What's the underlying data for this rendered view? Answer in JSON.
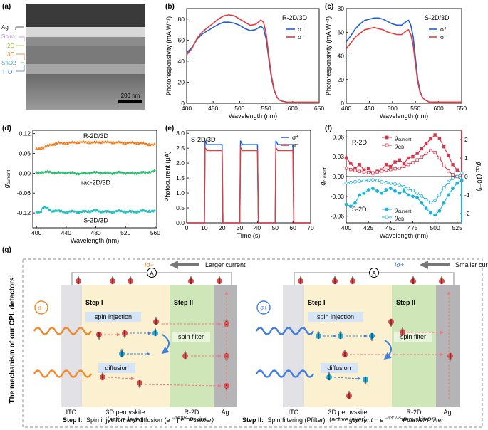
{
  "panels": {
    "a": {
      "label": "(a)",
      "layers": [
        "Ag",
        "Spiro",
        "2D",
        "3D",
        "SnO2",
        "ITO"
      ],
      "scale_bar": "200 nm",
      "colors": {
        "Ag": "#222222",
        "Spiro": "#b088d0",
        "2D": "#9acd32",
        "3D": "#e07020",
        "SnO2": "#4aa0a0",
        "ITO": "#3a7bd5"
      }
    },
    "b": {
      "label": "(b)",
      "title": "R-2D/3D"
    },
    "c": {
      "label": "(c)",
      "title": "S-2D/3D"
    },
    "d": {
      "label": "(d)"
    },
    "e": {
      "label": "(e)",
      "title": "S-2D/3D"
    },
    "f": {
      "label": "(f)",
      "label_top": "R-2D",
      "label_bottom": "S-2D"
    },
    "g": {
      "label": "(g)",
      "side_title": "The mechanism of our CPL detectors",
      "left": {
        "current_symbol": "Iσ−",
        "current_text": "Larger current",
        "light": "σ−"
      },
      "right": {
        "current_symbol": "Iσ+",
        "current_text": "Smaller current",
        "light": "σ+"
      },
      "ammeter": "A",
      "step1": "Step I",
      "step2": "Step II",
      "spin_injection": "spin injection",
      "diffusion": "diffusion",
      "spin_filter": "spin filter",
      "ito": "ITO",
      "perovskite3d_line1": "3D perovskite",
      "perovskite3d_line2": "(active layer)",
      "r2d_line1": "R-2D",
      "r2d_line2": "perovskite",
      "ag": "Ag",
      "caption_step1_bold": "Step I:",
      "caption_step1_text": "Spin injection and diffusion (e",
      "caption_step1_exp": "−d3D/λs",
      "caption_step1_tail": "Pcarrier)",
      "caption_step2_bold": "Step II:",
      "caption_step2_text": "Spin filtering (Pfilter)",
      "caption_eq": "gcurrent = e",
      "caption_eq_exp": "−d3D/λs",
      "caption_eq_tail": "Pcarrier Pfilter"
    }
  },
  "chart_data": [
    {
      "id": "b",
      "type": "line",
      "title": "R-2D/3D",
      "xlabel": "Wavelength (nm)",
      "ylabel": "Photoresponsivity (mA W⁻¹)",
      "xlim": [
        400,
        650
      ],
      "ylim": [
        0,
        90
      ],
      "xticks": [
        400,
        450,
        500,
        550,
        600,
        650
      ],
      "yticks": [
        0,
        20,
        40,
        60,
        80
      ],
      "legend": "top-right",
      "series": [
        {
          "name": "σ⁺",
          "color": "#1f5fd6",
          "x": [
            400,
            410,
            420,
            430,
            440,
            450,
            460,
            470,
            480,
            490,
            500,
            510,
            520,
            530,
            540,
            545,
            550,
            555,
            560,
            565,
            570,
            575,
            580,
            590,
            600,
            625,
            650
          ],
          "y": [
            48,
            53,
            61,
            66,
            69,
            72,
            75,
            77,
            77,
            76,
            74,
            71,
            69,
            70,
            73,
            71,
            61,
            42,
            24,
            12,
            6,
            3,
            2,
            1,
            1,
            1,
            1
          ]
        },
        {
          "name": "σ⁻",
          "color": "#e23b3b",
          "x": [
            400,
            410,
            420,
            430,
            440,
            450,
            460,
            470,
            480,
            490,
            500,
            510,
            520,
            530,
            540,
            545,
            550,
            555,
            560,
            565,
            570,
            575,
            580,
            590,
            600,
            625,
            650
          ],
          "y": [
            46,
            52,
            62,
            68,
            72,
            76,
            80,
            83,
            84,
            83,
            80,
            77,
            74,
            75,
            79,
            77,
            66,
            45,
            26,
            13,
            6,
            3,
            2,
            1,
            1,
            1,
            1
          ]
        }
      ]
    },
    {
      "id": "c",
      "type": "line",
      "title": "S-2D/3D",
      "xlabel": "Wavelength (nm)",
      "ylabel": "Photoresponsivity (mA W⁻¹)",
      "xlim": [
        400,
        650
      ],
      "ylim": [
        0,
        80
      ],
      "xticks": [
        400,
        450,
        500,
        550,
        600,
        650
      ],
      "yticks": [
        0,
        20,
        40,
        60,
        80
      ],
      "legend": "top-right",
      "series": [
        {
          "name": "σ⁺",
          "color": "#1f5fd6",
          "x": [
            400,
            410,
            420,
            430,
            440,
            450,
            460,
            470,
            480,
            490,
            500,
            510,
            520,
            530,
            535,
            540,
            545,
            550,
            555,
            560,
            565,
            570,
            580,
            600,
            650
          ],
          "y": [
            52,
            57,
            63,
            67,
            70,
            71,
            72,
            72,
            71,
            69,
            67,
            66,
            66,
            69,
            70,
            66,
            56,
            38,
            20,
            10,
            5,
            3,
            1,
            1,
            1
          ]
        },
        {
          "name": "σ⁻",
          "color": "#e23b3b",
          "x": [
            400,
            410,
            420,
            430,
            440,
            450,
            460,
            470,
            480,
            490,
            500,
            510,
            520,
            530,
            535,
            540,
            545,
            550,
            555,
            560,
            565,
            570,
            580,
            600,
            650
          ],
          "y": [
            46,
            51,
            56,
            59,
            62,
            63,
            64,
            63,
            62,
            60,
            59,
            58,
            58,
            61,
            62,
            58,
            49,
            33,
            18,
            9,
            5,
            3,
            1,
            1,
            1
          ]
        }
      ]
    },
    {
      "id": "d",
      "type": "line",
      "xlabel": "Wavelength (nm)",
      "ylabel": "gcurrent",
      "xlim": [
        395,
        562
      ],
      "ylim": [
        -0.165,
        0.13
      ],
      "xticks": [
        400,
        440,
        480,
        520,
        560
      ],
      "yticks": [
        -0.12,
        -0.06,
        0.0,
        0.06,
        0.12
      ],
      "series": [
        {
          "name": "R-2D/3D",
          "color": "#f07818",
          "marker": "triangle",
          "x": [
            400,
            410,
            420,
            430,
            440,
            450,
            460,
            470,
            480,
            490,
            500,
            510,
            520,
            530,
            540,
            550,
            560
          ],
          "y": [
            0.073,
            0.079,
            0.087,
            0.092,
            0.091,
            0.093,
            0.095,
            0.094,
            0.093,
            0.095,
            0.094,
            0.093,
            0.092,
            0.093,
            0.091,
            0.088,
            0.086
          ]
        },
        {
          "name": "rac-2D/3D",
          "color": "#2fbf71",
          "marker": "diamond",
          "x": [
            400,
            410,
            420,
            430,
            440,
            450,
            460,
            470,
            480,
            490,
            500,
            510,
            520,
            530,
            540,
            550,
            560
          ],
          "y": [
            0.0,
            0.004,
            0.003,
            0.001,
            0.002,
            0.0,
            -0.001,
            0.001,
            0.002,
            0.001,
            0.0,
            0.002,
            0.001,
            0.0,
            0.001,
            0.003,
            0.006
          ]
        },
        {
          "name": "S-2D/3D",
          "color": "#20c0c0",
          "marker": "square",
          "x": [
            400,
            405,
            410,
            415,
            420,
            425,
            430,
            440,
            450,
            460,
            470,
            480,
            490,
            500,
            510,
            520,
            530,
            540,
            550,
            560
          ],
          "y": [
            -0.12,
            -0.118,
            -0.1,
            -0.108,
            -0.115,
            -0.112,
            -0.115,
            -0.118,
            -0.116,
            -0.117,
            -0.115,
            -0.114,
            -0.116,
            -0.117,
            -0.115,
            -0.116,
            -0.117,
            -0.115,
            -0.114,
            -0.116
          ]
        }
      ]
    },
    {
      "id": "e",
      "type": "line",
      "title": "S-2D/3D",
      "xlabel": "Time (s)",
      "ylabel": "Photocurrent (μA)",
      "xlim": [
        0,
        70
      ],
      "ylim": [
        0,
        3.1
      ],
      "xticks": [
        0,
        10,
        20,
        30,
        40,
        50,
        60,
        70
      ],
      "yticks": [
        0.0,
        0.5,
        1.0,
        1.5,
        2.0,
        2.5,
        3.0
      ],
      "legend": "top-right",
      "pulses": [
        [
          10,
          20
        ],
        [
          30,
          40
        ],
        [
          50,
          60
        ]
      ],
      "series": [
        {
          "name": "σ⁺",
          "color": "#1f5fd6",
          "on_level": 2.62,
          "peak": 2.75,
          "off_level": 0.0
        },
        {
          "name": "σ⁻",
          "color": "#e23b3b",
          "on_level": 2.42,
          "peak": 2.52,
          "off_level": 0.0
        }
      ]
    },
    {
      "id": "f",
      "type": "line",
      "xlabel": "Wavelength (nm)",
      "ylabel": "gcurrent",
      "ylabel_right": "gCD (10⁻³)",
      "xlim": [
        400,
        530
      ],
      "ylim": [
        -0.07,
        0.07
      ],
      "ylim_right": [
        -2.5,
        2.5
      ],
      "xticks": [
        400,
        425,
        450,
        475,
        500,
        525
      ],
      "yticks": [
        -0.06,
        -0.03,
        0.0,
        0.03,
        0.06
      ],
      "yticks_right": [
        -2,
        -1,
        0,
        1,
        2
      ],
      "legend_items": [
        "gcurrent",
        "gCD",
        "gcurrent",
        "gCD"
      ],
      "series": [
        {
          "name": "R-2D gcurrent",
          "color": "#d8344a",
          "marker": "square-filled",
          "axis": "left",
          "x": [
            400,
            405,
            410,
            415,
            420,
            425,
            430,
            435,
            440,
            445,
            450,
            455,
            460,
            465,
            470,
            475,
            480,
            485,
            490,
            495,
            500,
            505,
            510,
            515,
            520,
            525,
            530
          ],
          "y": [
            0.028,
            0.02,
            0.012,
            0.018,
            0.01,
            0.012,
            0.005,
            0.008,
            0.01,
            0.018,
            0.015,
            0.022,
            0.025,
            0.02,
            0.028,
            0.03,
            0.035,
            0.042,
            0.05,
            0.057,
            0.063,
            0.058,
            0.045,
            0.032,
            0.018,
            0.01,
            0.005
          ]
        },
        {
          "name": "R-2D gCD",
          "color": "#d8344a",
          "marker": "square-open",
          "axis": "right",
          "x": [
            400,
            405,
            410,
            415,
            420,
            425,
            430,
            435,
            440,
            445,
            450,
            455,
            460,
            465,
            470,
            475,
            480,
            485,
            490,
            495,
            500,
            505,
            510,
            515,
            520,
            525,
            530
          ],
          "y": [
            0.45,
            0.38,
            0.32,
            0.28,
            0.25,
            0.22,
            0.2,
            0.25,
            0.3,
            0.35,
            0.38,
            0.42,
            0.45,
            0.55,
            0.65,
            0.75,
            0.9,
            1.05,
            1.25,
            1.4,
            1.3,
            1.0,
            0.6,
            0.3,
            0.1,
            0.0,
            -0.2
          ]
        },
        {
          "name": "S-2D gcurrent",
          "color": "#1fb3d8",
          "marker": "circle-filled",
          "axis": "left",
          "x": [
            400,
            405,
            410,
            415,
            420,
            425,
            430,
            435,
            440,
            445,
            450,
            455,
            460,
            465,
            470,
            475,
            480,
            485,
            490,
            495,
            500,
            505,
            510,
            515,
            520,
            525,
            530
          ],
          "y": [
            -0.042,
            -0.045,
            -0.04,
            -0.028,
            -0.025,
            -0.02,
            -0.018,
            -0.022,
            -0.025,
            -0.02,
            -0.018,
            -0.022,
            -0.025,
            -0.022,
            -0.028,
            -0.03,
            -0.032,
            -0.04,
            -0.048,
            -0.055,
            -0.058,
            -0.052,
            -0.04,
            -0.028,
            -0.018,
            -0.01,
            -0.005
          ]
        },
        {
          "name": "S-2D gCD",
          "color": "#1fb3d8",
          "marker": "circle-open",
          "axis": "right",
          "x": [
            400,
            405,
            410,
            415,
            420,
            425,
            430,
            435,
            440,
            445,
            450,
            455,
            460,
            465,
            470,
            475,
            480,
            485,
            490,
            495,
            500,
            505,
            510,
            515,
            520,
            525,
            530
          ],
          "y": [
            -0.35,
            -0.32,
            -0.28,
            -0.25,
            -0.22,
            -0.2,
            -0.18,
            -0.22,
            -0.28,
            -0.32,
            -0.36,
            -0.4,
            -0.45,
            -0.55,
            -0.65,
            -0.75,
            -0.9,
            -1.05,
            -1.25,
            -1.4,
            -1.3,
            -1.0,
            -0.6,
            -0.3,
            -0.1,
            0.0,
            0.2
          ]
        }
      ]
    }
  ]
}
